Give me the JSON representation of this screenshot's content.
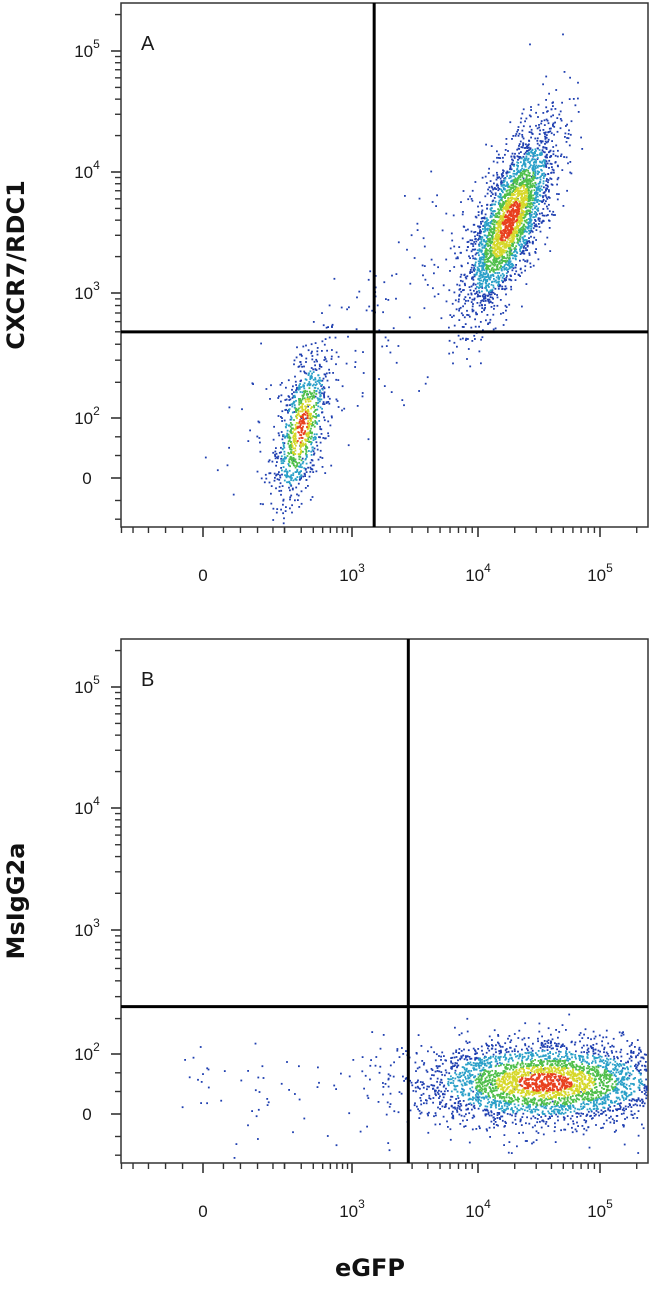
{
  "figure": {
    "xlabel": "eGFP"
  },
  "chart_data": [
    {
      "type": "scatter",
      "panel_label": "A",
      "title": "",
      "xlabel": "eGFP",
      "ylabel": "CXCR7/RDC1",
      "x_scale": "biexponential",
      "y_scale": "biexponential",
      "x_ticks": [
        {
          "value": 0,
          "base": "0",
          "exp": ""
        },
        {
          "value": 1000,
          "base": "10",
          "exp": "3"
        },
        {
          "value": 10000,
          "base": "10",
          "exp": "4"
        },
        {
          "value": 100000,
          "base": "10",
          "exp": "5"
        }
      ],
      "y_ticks": [
        {
          "value": 0,
          "base": "0",
          "exp": ""
        },
        {
          "value": 100,
          "base": "10",
          "exp": "2"
        },
        {
          "value": 1000,
          "base": "10",
          "exp": "3"
        },
        {
          "value": 10000,
          "base": "10",
          "exp": "4"
        },
        {
          "value": 100000,
          "base": "10",
          "exp": "5"
        }
      ],
      "quadrant_gate": {
        "x": 1500,
        "y": 500
      },
      "populations": [
        {
          "x_center": 18000,
          "y_center": 4000,
          "events": 2800,
          "density": "high"
        },
        {
          "x_center": 300,
          "y_center": 80,
          "events": 900,
          "density": "medium"
        }
      ],
      "grid": false,
      "legend": "none"
    },
    {
      "type": "scatter",
      "panel_label": "B",
      "title": "",
      "xlabel": "eGFP",
      "ylabel": "MsIgG2a",
      "x_scale": "biexponential",
      "y_scale": "biexponential",
      "x_ticks": [
        {
          "value": 0,
          "base": "0",
          "exp": ""
        },
        {
          "value": 1000,
          "base": "10",
          "exp": "3"
        },
        {
          "value": 10000,
          "base": "10",
          "exp": "4"
        },
        {
          "value": 100000,
          "base": "10",
          "exp": "5"
        }
      ],
      "y_ticks": [
        {
          "value": 0,
          "base": "0",
          "exp": ""
        },
        {
          "value": 100,
          "base": "10",
          "exp": "2"
        },
        {
          "value": 1000,
          "base": "10",
          "exp": "3"
        },
        {
          "value": 10000,
          "base": "10",
          "exp": "4"
        },
        {
          "value": 100000,
          "base": "10",
          "exp": "5"
        }
      ],
      "quadrant_gate": {
        "x": 2800,
        "y": 250
      },
      "populations": [
        {
          "x_center": 35000,
          "y_center": 45,
          "events": 3300,
          "density": "high"
        }
      ],
      "grid": false,
      "legend": "none"
    }
  ],
  "colors": {
    "low": "#1f3fb0",
    "mid_low": "#2aa0c8",
    "mid": "#4fbf4a",
    "mid_high": "#d6d82a",
    "high": "#e8401e",
    "axis": "#333333",
    "gate": "#000000"
  }
}
